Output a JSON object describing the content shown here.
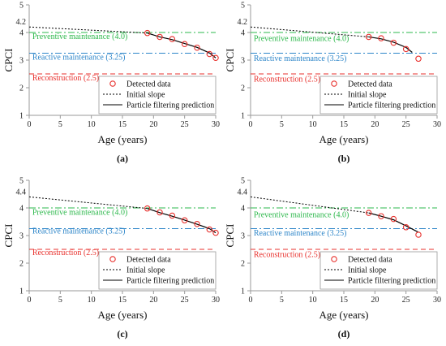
{
  "chart_data": [
    {
      "type": "line",
      "panel_label": "(a)",
      "xlabel": "Age (years)",
      "ylabel": "CPCI",
      "xlim": [
        0,
        30
      ],
      "ylim": [
        1,
        5
      ],
      "x_ticks": [
        0,
        5,
        10,
        15,
        20,
        25,
        30
      ],
      "y_ticks": [
        1,
        2,
        3,
        4,
        5
      ],
      "y_extra_tick": {
        "value": 4.2,
        "label": "4.2"
      },
      "grid": false,
      "legend_position": "bottom-right",
      "thresholds": [
        {
          "name": "Preventive maintenance (4.0)",
          "value": 4.0,
          "color": "#2db84c",
          "label_x": 0.5,
          "label_y": 3.87
        },
        {
          "name": "Reactive maintenance (3.25)",
          "value": 3.25,
          "color": "#2e86c9",
          "label_x": 0.5,
          "label_y": 3.12
        },
        {
          "name": "Reconstruction (2.5)",
          "value": 2.5,
          "color": "#e8302c",
          "label_x": 0.5,
          "label_y": 2.37
        }
      ],
      "series": [
        {
          "name": "Detected data",
          "style": "markers",
          "color": "#e8302c",
          "x": [
            19,
            21,
            23,
            25,
            27,
            29,
            30
          ],
          "y": [
            3.98,
            3.84,
            3.76,
            3.58,
            3.45,
            3.22,
            3.08
          ]
        },
        {
          "name": "Initial slope",
          "style": "dotted",
          "color": "#000000",
          "x": [
            0,
            19
          ],
          "y": [
            4.2,
            3.98
          ]
        },
        {
          "name": "Particle filtering prediction",
          "style": "solid",
          "color": "#000000",
          "x": [
            19,
            21,
            23,
            25,
            27,
            29,
            30
          ],
          "y": [
            3.98,
            3.84,
            3.74,
            3.6,
            3.46,
            3.26,
            3.08
          ]
        }
      ]
    },
    {
      "type": "line",
      "panel_label": "(b)",
      "xlabel": "Age (years)",
      "ylabel": "CPCI",
      "xlim": [
        0,
        30
      ],
      "ylim": [
        1,
        5
      ],
      "x_ticks": [
        0,
        5,
        10,
        15,
        20,
        25,
        30
      ],
      "y_ticks": [
        1,
        2,
        3,
        4,
        5
      ],
      "y_extra_tick": {
        "value": 4.2,
        "label": "4.2"
      },
      "grid": false,
      "legend_position": "bottom-right",
      "thresholds": [
        {
          "name": "Preventive maintenance (4.0)",
          "value": 4.0,
          "color": "#2db84c",
          "label_x": 0.5,
          "label_y": 3.8
        },
        {
          "name": "Reactive maintenance (3.25)",
          "value": 3.25,
          "color": "#2e86c9",
          "label_x": 0.5,
          "label_y": 3.07
        },
        {
          "name": "Reconstruction (2.5)",
          "value": 2.5,
          "color": "#e8302c",
          "label_x": 0.5,
          "label_y": 2.32
        }
      ],
      "series": [
        {
          "name": "Detected data",
          "style": "markers",
          "color": "#e8302c",
          "x": [
            19,
            21,
            23,
            25,
            27
          ],
          "y": [
            3.84,
            3.79,
            3.63,
            3.4,
            3.05
          ]
        },
        {
          "name": "Initial slope",
          "style": "dotted",
          "color": "#000000",
          "x": [
            0,
            19
          ],
          "y": [
            4.2,
            3.84
          ]
        },
        {
          "name": "Particle filtering prediction",
          "style": "solid",
          "color": "#000000",
          "x": [
            19,
            21,
            23,
            25,
            26
          ],
          "y": [
            3.84,
            3.77,
            3.65,
            3.46,
            3.28
          ]
        }
      ]
    },
    {
      "type": "line",
      "panel_label": "(c)",
      "xlabel": "Age (years)",
      "ylabel": "CPCI",
      "xlim": [
        0,
        30
      ],
      "ylim": [
        1,
        5
      ],
      "x_ticks": [
        0,
        5,
        10,
        15,
        20,
        25,
        30
      ],
      "y_ticks": [
        1,
        2,
        3,
        4,
        5
      ],
      "y_extra_tick": {
        "value": 4.4,
        "label": "4.4"
      },
      "grid": false,
      "legend_position": "bottom-right",
      "thresholds": [
        {
          "name": "Preventive maintenance (4.0)",
          "value": 4.0,
          "color": "#2db84c",
          "label_x": 0.5,
          "label_y": 3.85
        },
        {
          "name": "Reactive maintenance (3.25)",
          "value": 3.25,
          "color": "#2e86c9",
          "label_x": 0.5,
          "label_y": 3.18
        },
        {
          "name": "Reconstruction (2.5)",
          "value": 2.5,
          "color": "#e8302c",
          "label_x": 0.5,
          "label_y": 2.4
        }
      ],
      "series": [
        {
          "name": "Detected data",
          "style": "markers",
          "color": "#e8302c",
          "x": [
            19,
            21,
            23,
            25,
            27,
            29,
            30
          ],
          "y": [
            3.98,
            3.84,
            3.72,
            3.55,
            3.42,
            3.22,
            3.1
          ]
        },
        {
          "name": "Initial slope",
          "style": "dotted",
          "color": "#000000",
          "x": [
            0,
            19
          ],
          "y": [
            4.4,
            3.98
          ]
        },
        {
          "name": "Particle filtering prediction",
          "style": "solid",
          "color": "#000000",
          "x": [
            19,
            21,
            23,
            25,
            27,
            29,
            30
          ],
          "y": [
            3.98,
            3.83,
            3.7,
            3.56,
            3.41,
            3.25,
            3.1
          ]
        }
      ]
    },
    {
      "type": "line",
      "panel_label": "(d)",
      "xlabel": "Age (years)",
      "ylabel": "CPCI",
      "xlim": [
        0,
        30
      ],
      "ylim": [
        1,
        5
      ],
      "x_ticks": [
        0,
        5,
        10,
        15,
        20,
        25,
        30
      ],
      "y_ticks": [
        1,
        2,
        3,
        4,
        5
      ],
      "y_extra_tick": {
        "value": 4.4,
        "label": "4.4"
      },
      "grid": false,
      "legend_position": "bottom-right",
      "thresholds": [
        {
          "name": "Preventive maintenance (4.0)",
          "value": 4.0,
          "color": "#2db84c",
          "label_x": 0.5,
          "label_y": 3.77
        },
        {
          "name": "Reactive maintenance (3.25)",
          "value": 3.25,
          "color": "#2e86c9",
          "label_x": 0.5,
          "label_y": 3.1
        },
        {
          "name": "Reconstruction (2.5)",
          "value": 2.5,
          "color": "#e8302c",
          "label_x": 0.5,
          "label_y": 2.32
        }
      ],
      "series": [
        {
          "name": "Detected data",
          "style": "markers",
          "color": "#e8302c",
          "x": [
            19,
            21,
            23,
            25,
            27
          ],
          "y": [
            3.82,
            3.7,
            3.6,
            3.3,
            3.03
          ]
        },
        {
          "name": "Initial slope",
          "style": "dotted",
          "color": "#000000",
          "x": [
            0,
            19
          ],
          "y": [
            4.4,
            3.82
          ]
        },
        {
          "name": "Particle filtering prediction",
          "style": "solid",
          "color": "#000000",
          "x": [
            19,
            21,
            23,
            25,
            27
          ],
          "y": [
            3.82,
            3.7,
            3.57,
            3.35,
            3.12
          ]
        }
      ]
    }
  ]
}
